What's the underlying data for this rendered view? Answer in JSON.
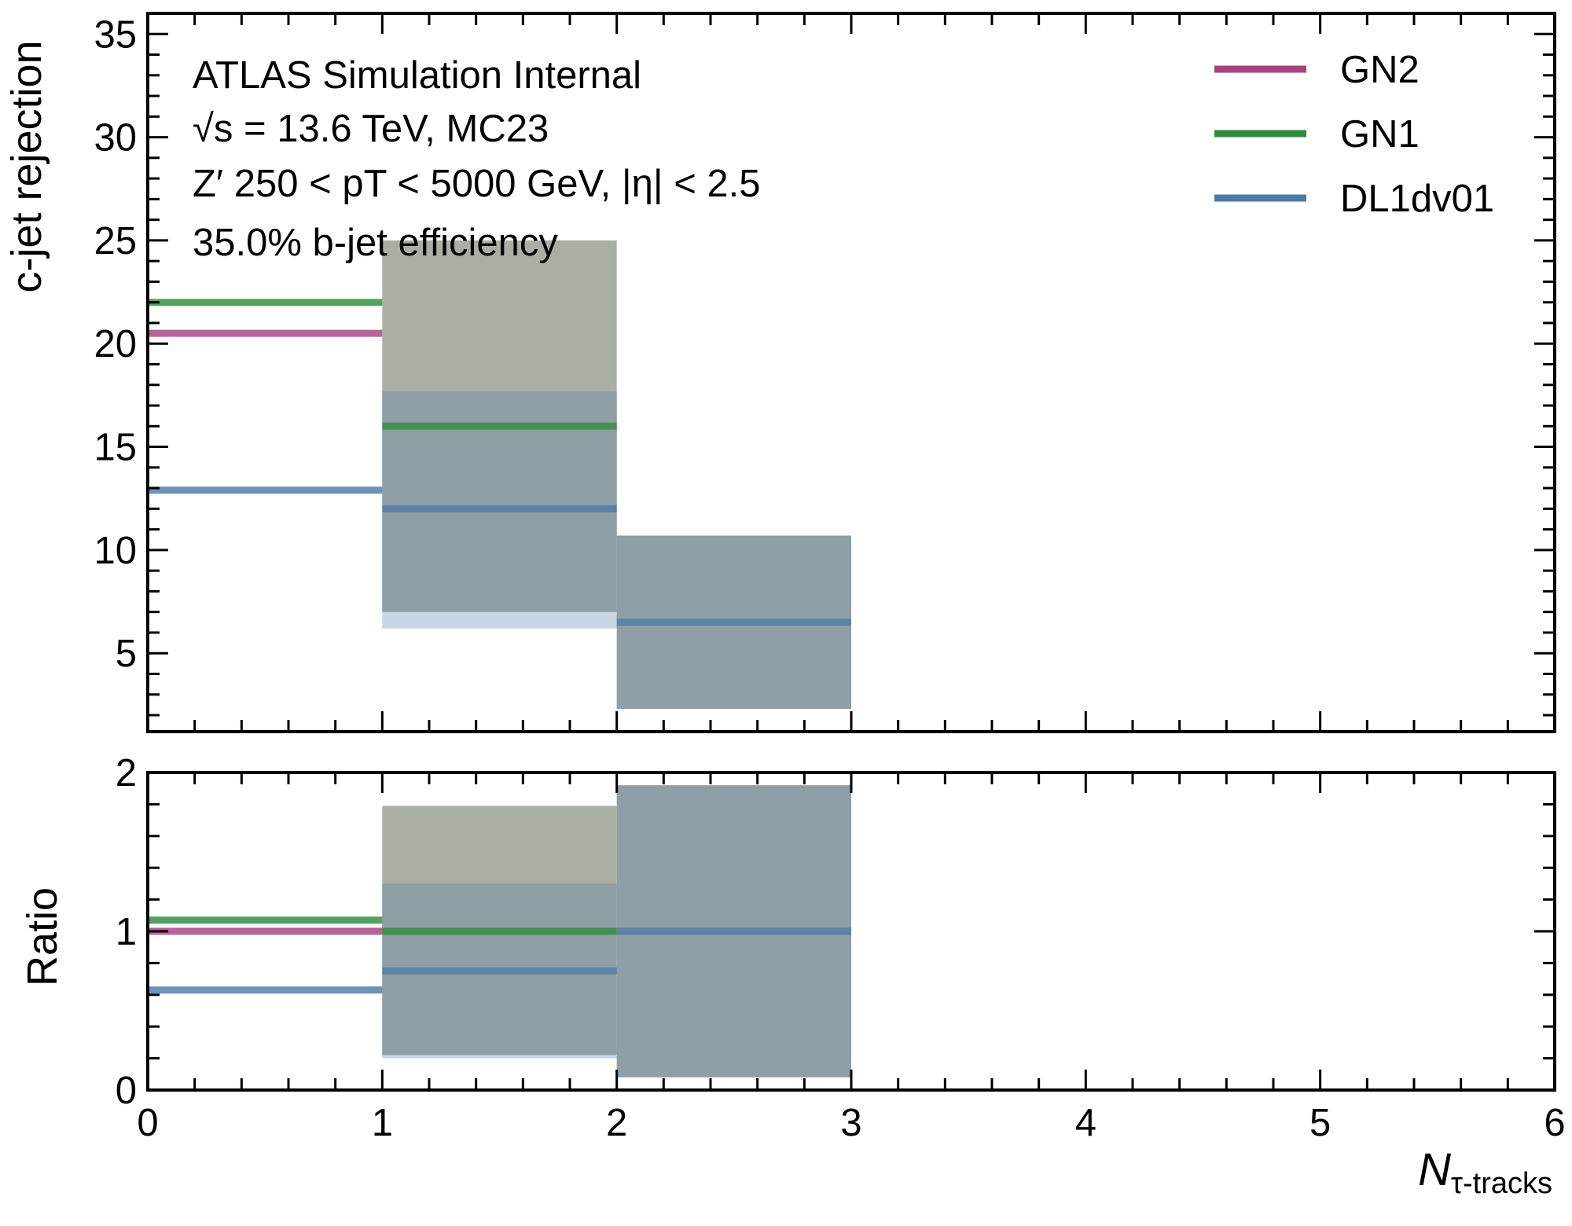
{
  "chart_data": [
    {
      "type": "step",
      "panel": "main",
      "ylabel": "c-jet rejection",
      "xlim": [
        0,
        6
      ],
      "ylim": [
        1.2,
        36
      ],
      "yticks": [
        5,
        10,
        15,
        20,
        25,
        30,
        35
      ],
      "bin_edges": [
        0,
        1,
        2,
        3
      ],
      "annotations": [
        "ATLAS Simulation Internal",
        "√s = 13.6 TeV, MC23",
        "Z′ 250 < pT < 5000 GeV, |η| < 2.5",
        "35.0% b-jet efficiency"
      ],
      "series": [
        {
          "name": "GN2",
          "color": "#a6437f",
          "values": [
            20.5
          ],
          "band": [
            null
          ]
        },
        {
          "name": "GN1",
          "color": "#2e8b3e",
          "values": [
            22.0,
            16.0
          ],
          "band": [
            null,
            [
              7.0,
              25.0
            ]
          ]
        },
        {
          "name": "DL1dv01",
          "color": "#4f7aa8",
          "values": [
            12.9,
            12.0,
            6.5
          ],
          "band": [
            null,
            [
              6.2,
              17.7
            ],
            [
              2.3,
              10.7
            ]
          ]
        }
      ]
    },
    {
      "type": "step",
      "panel": "ratio",
      "ylabel": "Ratio",
      "xlabel": "N",
      "xlabel_sub": "τ-tracks",
      "xlim": [
        0,
        6
      ],
      "ylim": [
        0,
        2
      ],
      "yticks": [
        0,
        1,
        2
      ],
      "xticks": [
        0,
        1,
        2,
        3,
        4,
        5,
        6
      ],
      "bin_edges": [
        0,
        1,
        2,
        3
      ],
      "series": [
        {
          "name": "GN2",
          "color": "#a6437f",
          "values": [
            1.0
          ],
          "band": [
            null
          ]
        },
        {
          "name": "GN1",
          "color": "#2e8b3e",
          "values": [
            1.07,
            1.0
          ],
          "band": [
            null,
            [
              0.22,
              1.79
            ]
          ]
        },
        {
          "name": "DL1dv01",
          "color": "#4f7aa8",
          "values": [
            0.63,
            0.75,
            1.0
          ],
          "band": [
            null,
            [
              0.2,
              1.3
            ],
            [
              0.08,
              1.92
            ]
          ]
        }
      ]
    }
  ],
  "legend": {
    "placement": "top-right",
    "entries": [
      {
        "label": "GN2",
        "color": "#a6437f"
      },
      {
        "label": "GN1",
        "color": "#2e8b3e"
      },
      {
        "label": "DL1dv01",
        "color": "#4f7aa8"
      }
    ]
  },
  "colors": {
    "gn1_band": "#a9b0a3",
    "dl1_band": "#8e9fa5",
    "dl1_band_light": "#c9d6e6"
  }
}
